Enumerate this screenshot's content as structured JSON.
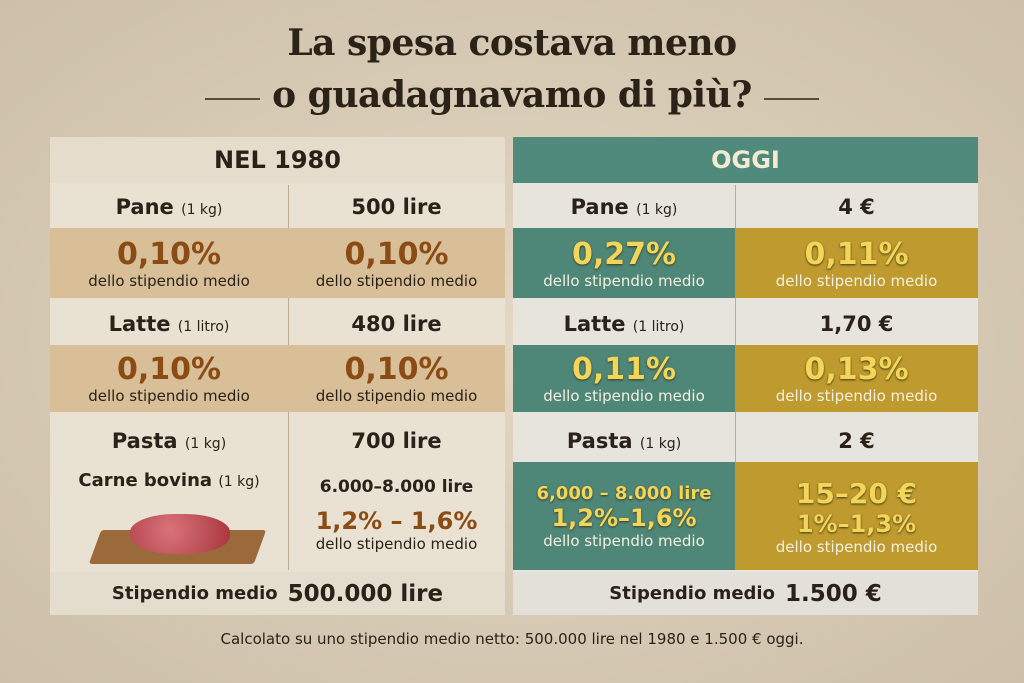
{
  "title": {
    "line1": "La spesa costava meno",
    "line2": "o guadagnavamo di più?"
  },
  "left": {
    "header": "NEL 1980",
    "pane": {
      "label": "Pane",
      "unit": "(1 kg)",
      "price": "500 lire",
      "pct1": "0,10%",
      "pct2": "0,10%"
    },
    "latte": {
      "label": "Latte",
      "unit": "(1 litro)",
      "price": "480 lire",
      "pct1": "0,10%",
      "pct2": "0,10%"
    },
    "pasta": {
      "label": "Pasta",
      "unit": "(1 kg)",
      "price": "700 lire"
    },
    "carne": {
      "label": "Carne bovina",
      "unit": "(1 kg)",
      "price": "6.000–8.000 lire",
      "pct": "1,2% – 1,6%"
    },
    "stipendio": {
      "label": "Stipendio medio",
      "value": "500.000 lire"
    }
  },
  "right": {
    "header": "OGGI",
    "pane": {
      "label": "Pane",
      "unit": "(1 kg)",
      "price": "4 €",
      "pct1": "0,27%",
      "pct2": "0,11%"
    },
    "latte": {
      "label": "Latte",
      "unit": "(1 litro)",
      "price": "1,70 €",
      "pct1": "0,11%",
      "pct2": "0,13%"
    },
    "pasta": {
      "label": "Pasta",
      "unit": "(1 kg)",
      "price": "2 €"
    },
    "carne": {
      "price1": "6,000 – 8.000 lire",
      "pct1": "1,2%–1,6%",
      "price2": "15–20 €",
      "pct2": "1%–1,3%"
    },
    "stipendio": {
      "label": "Stipendio medio",
      "value": "1.500 €"
    }
  },
  "sub": "dello stipendio medio",
  "footer": "Calcolato su uno stipendio medio netto: 500.000 lire nel 1980 e 1.500 € oggi."
}
